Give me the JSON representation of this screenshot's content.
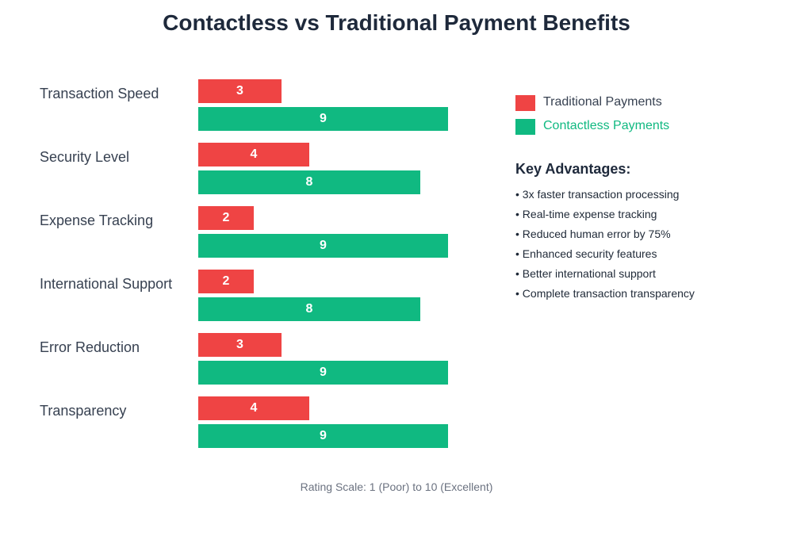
{
  "title": "Contactless vs Traditional Payment Benefits",
  "colors": {
    "traditional": "#ef4444",
    "contactless": "#10b981"
  },
  "legend": [
    {
      "label": "Traditional Payments",
      "color": "#ef4444",
      "text_color": "#374151"
    },
    {
      "label": "Contactless Payments",
      "color": "#10b981",
      "text_color": "#10b981"
    }
  ],
  "advantages": {
    "title": "Key Advantages:",
    "items": [
      "• 3x faster transaction processing",
      "• Real-time expense tracking",
      "• Reduced human error by 75%",
      "• Enhanced security features",
      "• Better international support",
      "• Complete transaction transparency"
    ]
  },
  "footer": "Rating Scale: 1 (Poor) to 10 (Excellent)",
  "chart_data": {
    "type": "bar",
    "orientation": "horizontal",
    "title": "Contactless vs Traditional Payment Benefits",
    "categories": [
      "Transaction Speed",
      "Security Level",
      "Expense Tracking",
      "International Support",
      "Error Reduction",
      "Transparency"
    ],
    "series": [
      {
        "name": "Traditional Payments",
        "color": "#ef4444",
        "values": [
          3,
          4,
          2,
          2,
          3,
          4
        ]
      },
      {
        "name": "Contactless Payments",
        "color": "#10b981",
        "values": [
          9,
          8,
          9,
          8,
          9,
          9
        ]
      }
    ],
    "xlabel": "Rating Scale: 1 (Poor) to 10 (Excellent)",
    "ylabel": "",
    "xlim": [
      0,
      10
    ],
    "data_labels": true,
    "grid": false,
    "legend_position": "right"
  }
}
